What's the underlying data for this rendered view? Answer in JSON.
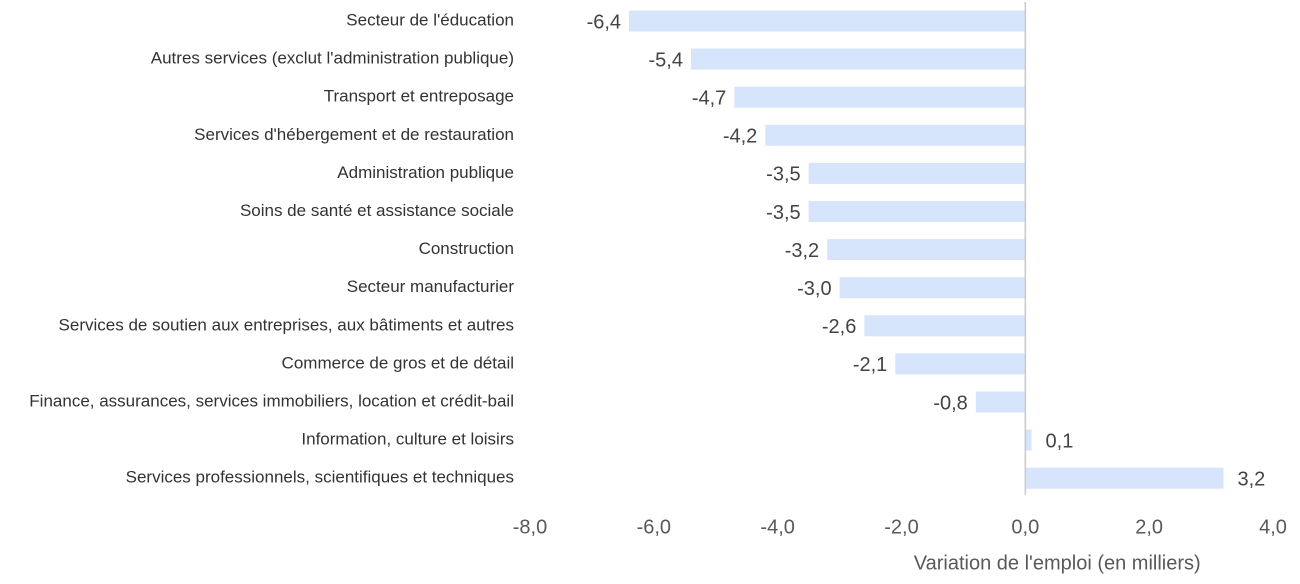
{
  "chart_data": {
    "type": "bar",
    "orientation": "horizontal",
    "categories": [
      "Secteur de l'éducation",
      "Autres services (exclut l'administration publique)",
      "Transport et entreposage",
      "Services d'hébergement et de restauration",
      "Administration publique",
      "Soins de santé et assistance sociale",
      "Construction",
      "Secteur manufacturier",
      "Services de soutien aux entreprises, aux bâtiments et autres",
      "Commerce de gros et de détail",
      "Finance, assurances, services immobiliers, location et crédit-bail",
      "Information, culture et loisirs",
      "Services professionnels, scientifiques et techniques"
    ],
    "values": [
      -6.4,
      -5.4,
      -4.7,
      -4.2,
      -3.5,
      -3.5,
      -3.2,
      -3.0,
      -2.6,
      -2.1,
      -0.8,
      0.1,
      3.2
    ],
    "value_labels": [
      "-6,4",
      "-5,4",
      "-4,7",
      "-4,2",
      "-3,5",
      "-3,5",
      "-3,2",
      "-3,0",
      "-2,6",
      "-2,1",
      "-0,8",
      "0,1",
      "3,2"
    ],
    "xlim": [
      -8,
      4
    ],
    "x_ticks": [
      -8,
      -6,
      -4,
      -2,
      0,
      2,
      4
    ],
    "x_tick_labels": [
      "-8,0",
      "-6,0",
      "-4,0",
      "-2,0",
      "0,0",
      "2,0",
      "4,0"
    ],
    "xlabel": "Variation de l'emploi (en milliers)",
    "ylabel": "",
    "title": "",
    "grid": false,
    "legend": "none",
    "colors": {
      "bar": "#d6e4fc",
      "zero_line": "#c9c9c9"
    }
  }
}
